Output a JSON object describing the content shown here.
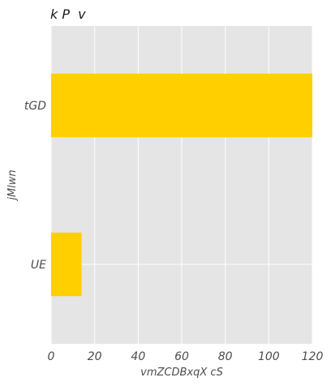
{
  "chart_data": {
    "type": "bar",
    "orientation": "horizontal",
    "title": "k P  v",
    "xlabel": "vmZCDBxqX cS",
    "ylabel": "jMlwn",
    "categories": [
      "tGD",
      "UE"
    ],
    "values": [
      120,
      14
    ],
    "xlim": [
      0,
      120
    ],
    "xticks": [
      0,
      20,
      40,
      60,
      80,
      100,
      120
    ],
    "grid": true,
    "legend": "none",
    "colors": {
      "bar": "#ffcf00",
      "panel": "#e5e5e5",
      "grid": "#ffffff",
      "text": "#4d4d4d",
      "title": "#1a1a1a"
    }
  }
}
